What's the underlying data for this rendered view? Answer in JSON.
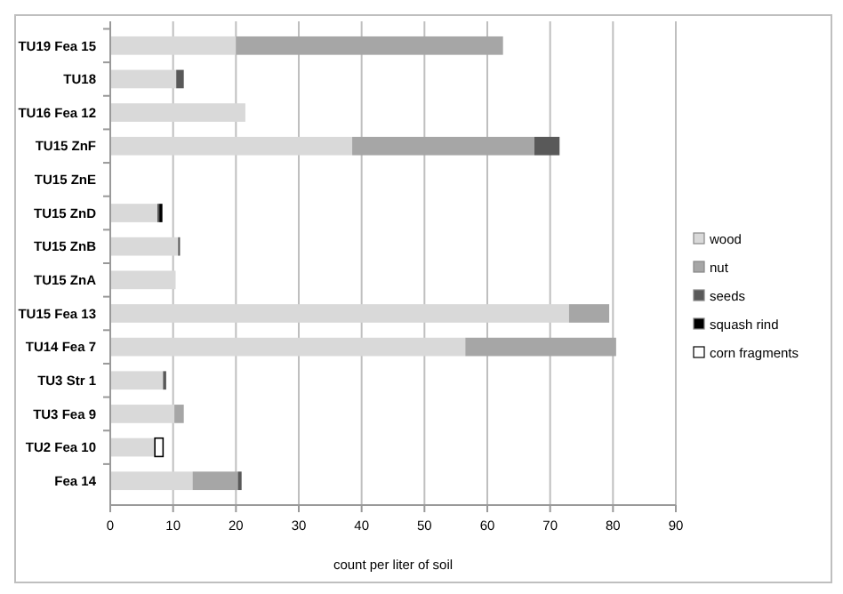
{
  "chart_data": {
    "type": "bar",
    "orientation": "horizontal",
    "stacked": true,
    "xlabel": "count per liter of soil",
    "categories": [
      "TU19 Fea 15",
      "TU18",
      "TU16 Fea 12",
      "TU15 ZnF",
      "TU15 ZnE",
      "TU15 ZnD",
      "TU15 ZnB",
      "TU15 ZnA",
      "TU15 Fea 13",
      "TU14 Fea 7",
      "TU3 Str 1",
      "TU3 Fea 9",
      "TU2 Fea 10",
      "Fea 14"
    ],
    "series": [
      {
        "name": "wood",
        "color": "#d9d9d9",
        "values": [
          20,
          10.5,
          21.5,
          38.5,
          null,
          7.5,
          10.8,
          10.4,
          73,
          56.5,
          8.4,
          10.2,
          7.1,
          13.1
        ]
      },
      {
        "name": "nut",
        "color": "#a6a6a6",
        "values": [
          42.5,
          null,
          null,
          29,
          null,
          null,
          null,
          null,
          6.4,
          24,
          null,
          1.5,
          null,
          7.2
        ]
      },
      {
        "name": "seeds",
        "color": "#595959",
        "values": [
          null,
          1.2,
          null,
          4,
          null,
          0.3,
          0.3,
          null,
          null,
          null,
          0.5,
          null,
          null,
          0.6
        ]
      },
      {
        "name": "squash rind",
        "color": "#000000",
        "values": [
          null,
          null,
          null,
          null,
          null,
          0.5,
          null,
          null,
          null,
          null,
          null,
          null,
          null,
          null
        ]
      },
      {
        "name": "corn fragments",
        "color": "#ffffff",
        "values": [
          null,
          null,
          null,
          null,
          null,
          null,
          null,
          null,
          null,
          null,
          null,
          null,
          1.3,
          null
        ]
      }
    ],
    "xlim": [
      0,
      90
    ],
    "xticks": [
      0,
      10,
      20,
      30,
      40,
      50,
      60,
      70,
      80,
      90
    ],
    "grid": "x",
    "legend": "right"
  }
}
